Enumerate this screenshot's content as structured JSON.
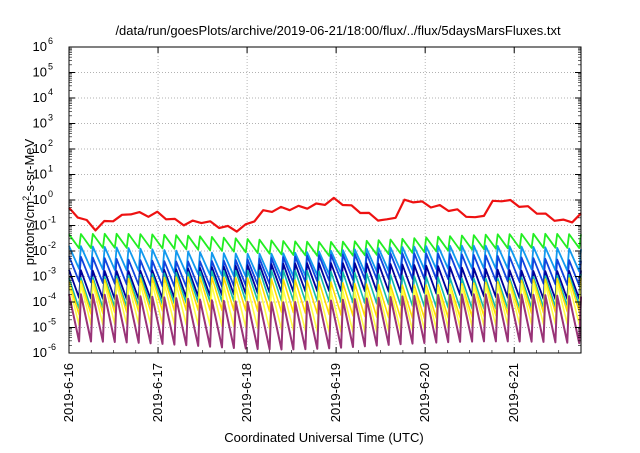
{
  "chart_data": {
    "type": "line",
    "title": "/data/run/goesPlots/archive/2019-06-21/18:00/flux/../flux/5daysMarsFluxes.txt",
    "xlabel": "Coordinated Universal Time (UTC)",
    "ylabel": "protons/cm²-s-sr-MeV",
    "ylabel_parts": {
      "a": "protons/cm",
      "sup": "2",
      "b": "-s-sr-MeV"
    },
    "log_y": true,
    "ylim": [
      1e-06,
      1000000.0
    ],
    "xlim": [
      "2019-06-16 00:00",
      "2019-06-21 18:00"
    ],
    "grid": true,
    "x_ticks": [
      {
        "t": 0,
        "label": "2019-6-16"
      },
      {
        "t": 1,
        "label": "2019-6-17"
      },
      {
        "t": 2,
        "label": "2019-6-18"
      },
      {
        "t": 3,
        "label": "2019-6-19"
      },
      {
        "t": 4,
        "label": "2019-6-20"
      },
      {
        "t": 5,
        "label": "2019-6-21"
      }
    ],
    "y_ticks": [
      {
        "exp": -6,
        "base": "10",
        "sup": "-6"
      },
      {
        "exp": -5,
        "base": "10",
        "sup": "-5"
      },
      {
        "exp": -4,
        "base": "10",
        "sup": "-4"
      },
      {
        "exp": -3,
        "base": "10",
        "sup": "-3"
      },
      {
        "exp": -2,
        "base": "10",
        "sup": "-2"
      },
      {
        "exp": -1,
        "base": "10",
        "sup": "-1"
      },
      {
        "exp": 0,
        "base": "10",
        "sup": "0"
      },
      {
        "exp": 1,
        "base": "10",
        "sup": "1"
      },
      {
        "exp": 2,
        "base": "10",
        "sup": "2"
      },
      {
        "exp": 3,
        "base": "10",
        "sup": "3"
      },
      {
        "exp": 4,
        "base": "10",
        "sup": "4"
      },
      {
        "exp": 5,
        "base": "10",
        "sup": "5"
      },
      {
        "exp": 6,
        "base": "10",
        "sup": "6"
      }
    ],
    "series": [
      {
        "color": "#ee1111",
        "width": 2.2,
        "kind": "envelope",
        "x": [
          0.0,
          0.15,
          0.3,
          0.45,
          0.55,
          0.7,
          0.85,
          1.0,
          1.15,
          1.3,
          1.5,
          1.7,
          1.9,
          2.0,
          2.2,
          2.4,
          2.6,
          2.8,
          3.0,
          3.1,
          3.3,
          3.5,
          3.65,
          3.7,
          3.85,
          4.0,
          4.2,
          4.4,
          4.6,
          4.75,
          4.85,
          5.0,
          5.2,
          5.4,
          5.6,
          5.75
        ],
        "y": [
          0.5,
          0.22,
          0.09,
          0.2,
          0.22,
          0.4,
          0.3,
          0.35,
          0.2,
          0.14,
          0.18,
          0.11,
          0.08,
          0.12,
          0.45,
          0.55,
          0.6,
          0.75,
          1.3,
          0.8,
          0.4,
          0.2,
          0.15,
          0.9,
          1.2,
          0.8,
          0.6,
          0.4,
          0.18,
          0.9,
          1.3,
          0.9,
          0.5,
          0.25,
          0.15,
          0.3
        ]
      },
      {
        "color": "#22ee22",
        "width": 1.8,
        "kind": "saw",
        "base": 0.035,
        "amp": 0.55,
        "n": 43
      },
      {
        "color": "#1199ee",
        "width": 1.8,
        "kind": "saw",
        "base": 0.012,
        "amp": 0.9,
        "n": 43
      },
      {
        "color": "#1144dd",
        "width": 1.8,
        "kind": "saw",
        "base": 0.006,
        "amp": 1.0,
        "n": 43
      },
      {
        "color": "#000099",
        "width": 1.8,
        "kind": "saw",
        "base": 0.0025,
        "amp": 1.1,
        "n": 43
      },
      {
        "color": "#11bbaa",
        "width": 1.6,
        "kind": "saw",
        "base": 0.0013,
        "amp": 1.2,
        "n": 43
      },
      {
        "color": "#ffdd00",
        "width": 1.6,
        "kind": "saw",
        "base": 0.0007,
        "amp": 1.3,
        "n": 43
      },
      {
        "color": "#ffff44",
        "width": 1.6,
        "kind": "saw",
        "base": 0.0004,
        "amp": 1.6,
        "n": 43
      },
      {
        "color": "#993377",
        "width": 2.0,
        "kind": "saw",
        "base": 0.00015,
        "amp": 1.85,
        "n": 43
      }
    ]
  }
}
